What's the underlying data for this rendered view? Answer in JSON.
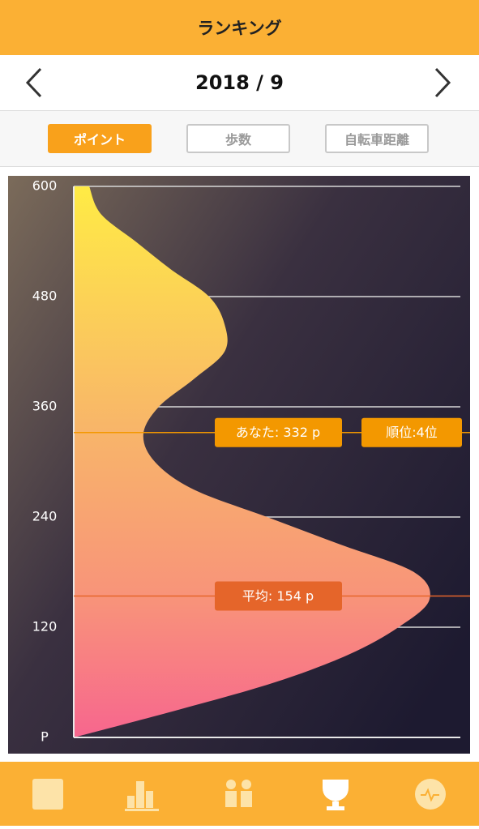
{
  "header": {
    "title": "ランキング"
  },
  "nav": {
    "period": "2018 / 9"
  },
  "tabs": [
    "ポイント",
    "歩数",
    "自転車距離"
  ],
  "chart_data": {
    "type": "density",
    "y": [
      0,
      30,
      60,
      90,
      120,
      150,
      180,
      210,
      240,
      270,
      300,
      330,
      360,
      390,
      420,
      450,
      480,
      510,
      540,
      570,
      600
    ],
    "density": [
      0,
      0.27,
      0.52,
      0.71,
      0.84,
      0.92,
      0.88,
      0.69,
      0.5,
      0.31,
      0.21,
      0.18,
      0.22,
      0.31,
      0.39,
      0.39,
      0.35,
      0.25,
      0.16,
      0.07,
      0.04
    ],
    "xlim": [
      0,
      1
    ],
    "ylim": [
      0,
      600
    ],
    "yticks": [
      {
        "value": 0,
        "label": "P"
      },
      120,
      240,
      360,
      480,
      600
    ],
    "grid": true,
    "markers": [
      {
        "value": 332,
        "label": "あなた: 332 p",
        "color": "#f39800"
      },
      {
        "value": 154,
        "label": "平均: 154 p",
        "color": "#e5652a"
      }
    ],
    "rank_label": "順位:4位"
  }
}
